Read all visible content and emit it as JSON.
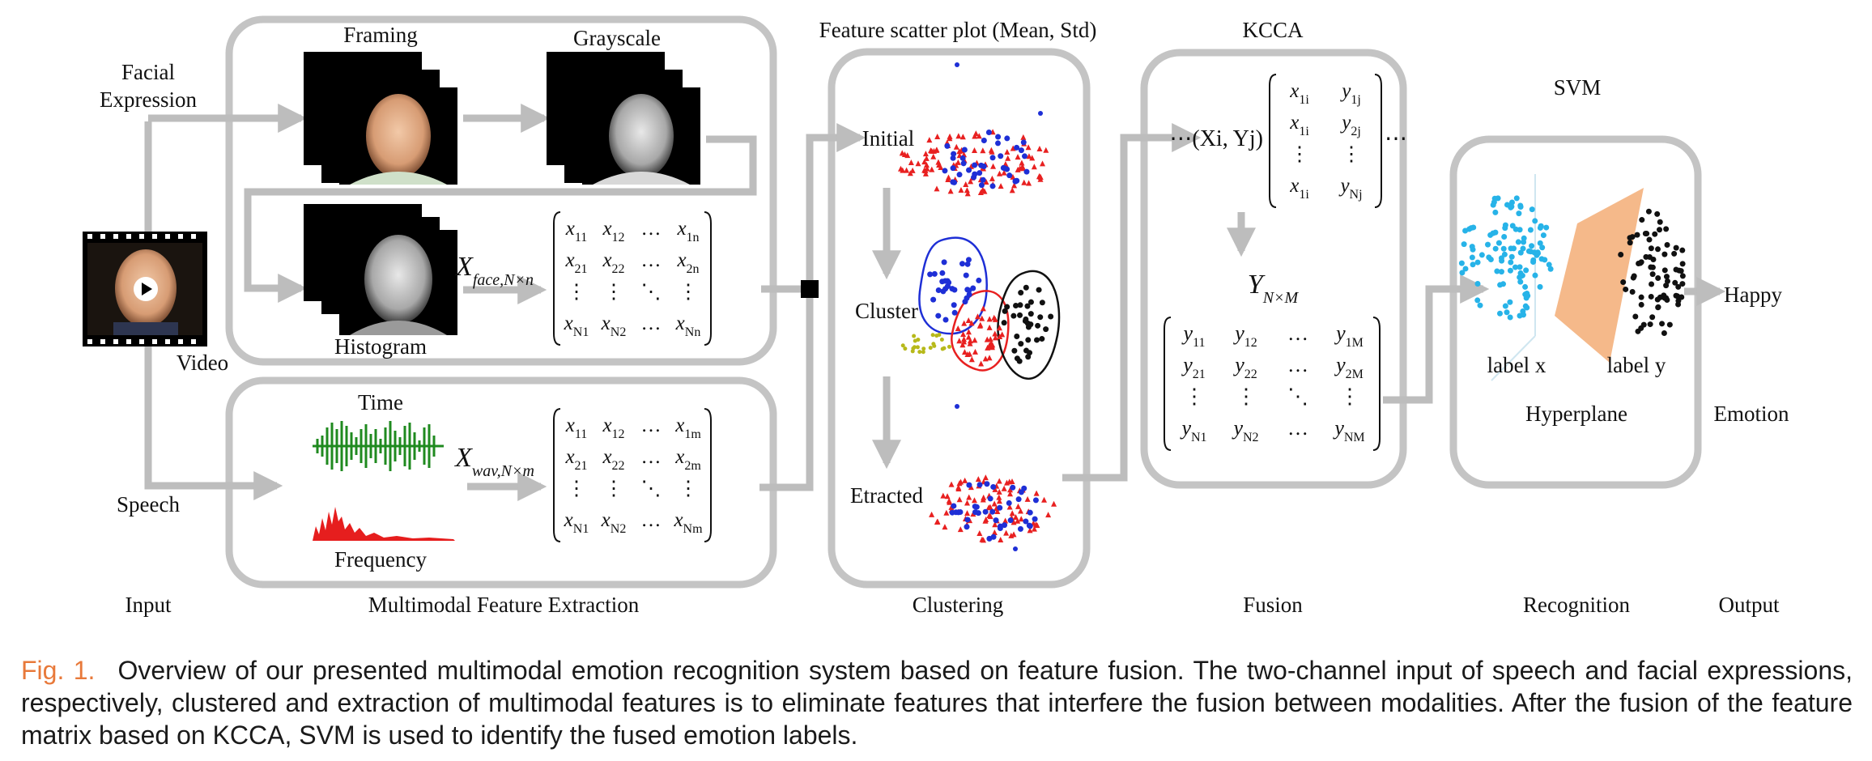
{
  "labels": {
    "facial_expression": [
      "Facial",
      "Expression"
    ],
    "video": "Video",
    "speech": "Speech",
    "framing": "Framing",
    "grayscale": "Grayscale",
    "histogram": "Histogram",
    "time": "Time",
    "frequency": "Frequency",
    "scatter_title": "Feature scatter plot (Mean, Std)",
    "initial": "Initial",
    "cluster": "Cluster",
    "extracted": "Etracted",
    "kcca": "KCCA",
    "svm": "SVM",
    "label_x": "label x",
    "label_y": "label y",
    "hyperplane": "Hyperplane",
    "happy": "Happy",
    "emotion": "Emotion"
  },
  "stages": [
    "Input",
    "Multimodal Feature Extraction",
    "Clustering",
    "Fusion",
    "Recognition",
    "Output"
  ],
  "math": {
    "x_face_matrix": {
      "name": "X",
      "subscript": "face,N×n",
      "rows": [
        [
          "x11",
          "x12",
          "…",
          "x1n"
        ],
        [
          "x21",
          "x22",
          "…",
          "x2n"
        ],
        [
          "⋮",
          "⋮",
          "⋱",
          "⋮"
        ],
        [
          "xN1",
          "xN2",
          "…",
          "xNn"
        ]
      ]
    },
    "x_wav_matrix": {
      "name": "X",
      "subscript": "wav,N×m",
      "rows": [
        [
          "x11",
          "x12",
          "…",
          "x1m"
        ],
        [
          "x21",
          "x22",
          "…",
          "x2m"
        ],
        [
          "⋮",
          "⋮",
          "⋱",
          "⋮"
        ],
        [
          "xN1",
          "xN2",
          "…",
          "xNm"
        ]
      ]
    },
    "pair_matrix": {
      "prefix": "⋯(Xi, Yj)",
      "suffix": "⋯",
      "rows": [
        [
          "x1i",
          "y1j"
        ],
        [
          "x1i",
          "y2j"
        ],
        [
          "⋮",
          "⋮"
        ],
        [
          "x1i",
          "yNj"
        ]
      ]
    },
    "y_matrix": {
      "name": "Y",
      "subscript": "N×M",
      "rows": [
        [
          "y11",
          "y12",
          "…",
          "y1M"
        ],
        [
          "y21",
          "y22",
          "…",
          "y2M"
        ],
        [
          "⋮",
          "⋮",
          "⋱",
          "⋮"
        ],
        [
          "yN1",
          "yN2",
          "…",
          "yNM"
        ]
      ]
    }
  },
  "caption": {
    "label": "Fig. 1.",
    "text": "Overview of our presented multimodal emotion recognition system based on feature fusion. The two-channel input of speech and facial expressions, respectively, clustered and extraction of multimodal features is to eliminate features that interfere the fusion between modalities. After the fusion of the feature matrix based on KCCA, SVM is used to identify the fused emotion labels."
  },
  "colors": {
    "frame_gray": "#c4c4c4",
    "arrow_gray": "#bdbdbd",
    "blue_points": "#1e2fd6",
    "red_points": "#e82020",
    "yellow_points": "#b7b91a",
    "black_points": "#111111",
    "cyan_points": "#27b3e8",
    "hyperplane": "#f5b98a",
    "waveform_green": "#1f8a1f",
    "spectrum_red": "#e61e1e",
    "caption_accent": "#e8793a"
  }
}
